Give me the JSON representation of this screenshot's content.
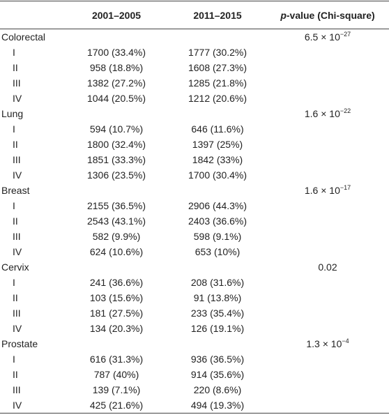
{
  "table": {
    "header": {
      "col1": "2001–2005",
      "col2": "2011–2015",
      "col3": {
        "italic": "p",
        "rest": "-value (Chi-square)"
      }
    },
    "groups": [
      {
        "name": "Colorectal",
        "p": {
          "base": "6.5 × 10",
          "exp": "−27"
        },
        "rows": [
          [
            "I",
            "1700 (33.4%)",
            "1777 (30.2%)"
          ],
          [
            "II",
            "958 (18.8%)",
            "1608 (27.3%)"
          ],
          [
            "III",
            "1382 (27.2%)",
            "1285 (21.8%)"
          ],
          [
            "IV",
            "1044 (20.5%)",
            "1212 (20.6%)"
          ]
        ]
      },
      {
        "name": "Lung",
        "p": {
          "base": "1.6 × 10",
          "exp": "−22"
        },
        "rows": [
          [
            "I",
            "594 (10.7%)",
            "646 (11.6%)"
          ],
          [
            "II",
            "1800 (32.4%)",
            "1397 (25%)"
          ],
          [
            "III",
            "1851 (33.3%)",
            "1842 (33%)"
          ],
          [
            "IV",
            "1306 (23.5%)",
            "1700 (30.4%)"
          ]
        ]
      },
      {
        "name": "Breast",
        "p": {
          "base": "1.6 × 10",
          "exp": "−17"
        },
        "rows": [
          [
            "I",
            "2155 (36.5%)",
            "2906 (44.3%)"
          ],
          [
            "II",
            "2543 (43.1%)",
            "2403 (36.6%)"
          ],
          [
            "III",
            "582 (9.9%)",
            "598 (9.1%)"
          ],
          [
            "IV",
            "624 (10.6%)",
            "653 (10%)"
          ]
        ]
      },
      {
        "name": "Cervix",
        "p": {
          "base": "0.02"
        },
        "rows": [
          [
            "I",
            "241 (36.6%)",
            "208 (31.6%)"
          ],
          [
            "II",
            "103 (15.6%)",
            "91 (13.8%)"
          ],
          [
            "III",
            "181 (27.5%)",
            "233 (35.4%)"
          ],
          [
            "IV",
            "134 (20.3%)",
            "126 (19.1%)"
          ]
        ]
      },
      {
        "name": "Prostate",
        "p": {
          "base": "1.3 × 10",
          "exp": "−4"
        },
        "rows": [
          [
            "I",
            "616 (31.3%)",
            "936 (36.5%)"
          ],
          [
            "II",
            "787 (40%)",
            "914 (35.6%)"
          ],
          [
            "III",
            "139 (7.1%)",
            "220 (8.6%)"
          ],
          [
            "IV",
            "425 (21.6%)",
            "494 (19.3%)"
          ]
        ]
      }
    ]
  }
}
